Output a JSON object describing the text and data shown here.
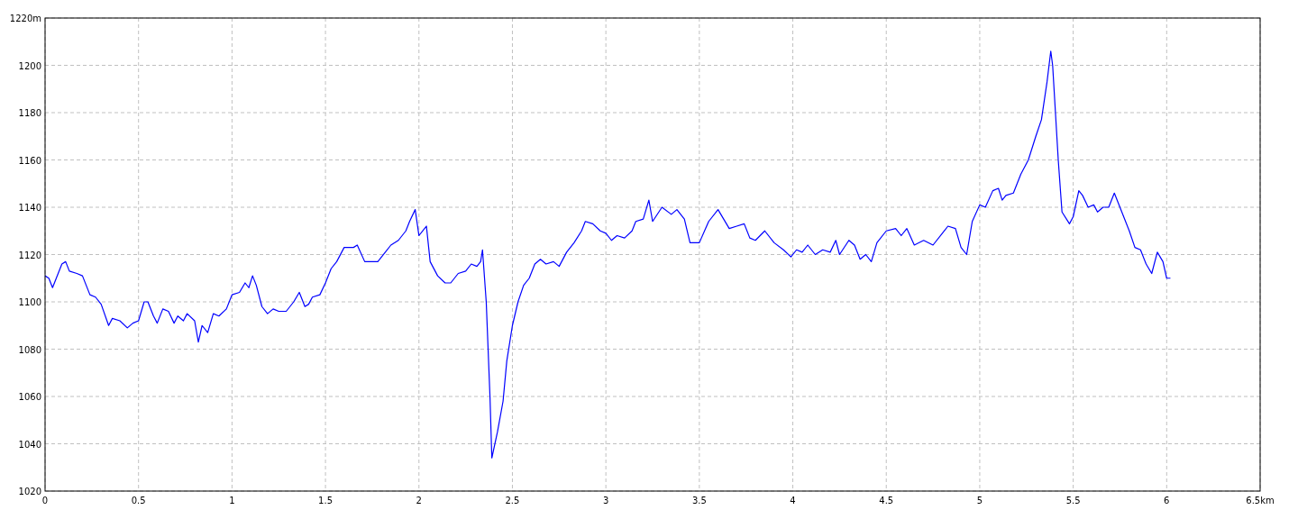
{
  "chart_data": {
    "type": "line",
    "x": [
      0,
      0.02,
      0.04,
      0.06,
      0.09,
      0.11,
      0.13,
      0.17,
      0.2,
      0.22,
      0.24,
      0.27,
      0.3,
      0.34,
      0.36,
      0.4,
      0.44,
      0.47,
      0.5,
      0.53,
      0.55,
      0.58,
      0.6,
      0.63,
      0.66,
      0.69,
      0.71,
      0.74,
      0.76,
      0.8,
      0.82,
      0.84,
      0.87,
      0.9,
      0.93,
      0.97,
      1.0,
      1.04,
      1.07,
      1.09,
      1.11,
      1.13,
      1.16,
      1.19,
      1.22,
      1.25,
      1.29,
      1.33,
      1.36,
      1.39,
      1.41,
      1.43,
      1.47,
      1.5,
      1.53,
      1.56,
      1.6,
      1.65,
      1.67,
      1.71,
      1.75,
      1.78,
      1.82,
      1.85,
      1.89,
      1.93,
      1.95,
      1.98,
      2.0,
      2.04,
      2.06,
      2.1,
      2.14,
      2.17,
      2.21,
      2.25,
      2.28,
      2.31,
      2.33,
      2.34,
      2.36,
      2.38,
      2.39,
      2.42,
      2.45,
      2.47,
      2.5,
      2.53,
      2.56,
      2.59,
      2.62,
      2.65,
      2.68,
      2.72,
      2.75,
      2.79,
      2.83,
      2.87,
      2.89,
      2.93,
      2.97,
      3.0,
      3.03,
      3.06,
      3.1,
      3.14,
      3.16,
      3.2,
      3.23,
      3.25,
      3.3,
      3.35,
      3.38,
      3.42,
      3.45,
      3.5,
      3.55,
      3.6,
      3.63,
      3.66,
      3.7,
      3.74,
      3.77,
      3.8,
      3.85,
      3.9,
      3.95,
      3.99,
      4.02,
      4.05,
      4.08,
      4.12,
      4.16,
      4.2,
      4.23,
      4.25,
      4.3,
      4.33,
      4.36,
      4.39,
      4.42,
      4.45,
      4.5,
      4.55,
      4.58,
      4.61,
      4.65,
      4.7,
      4.75,
      4.8,
      4.83,
      4.87,
      4.9,
      4.93,
      4.96,
      5.0,
      5.03,
      5.07,
      5.1,
      5.12,
      5.14,
      5.18,
      5.22,
      5.26,
      5.3,
      5.33,
      5.36,
      5.38,
      5.39,
      5.42,
      5.44,
      5.48,
      5.5,
      5.53,
      5.55,
      5.58,
      5.61,
      5.63,
      5.66,
      5.69,
      5.72,
      5.75,
      5.8,
      5.83,
      5.86,
      5.89,
      5.92,
      5.95,
      5.98,
      6.0,
      6.02
    ],
    "series": [
      {
        "color": "#0000ff",
        "values": [
          1111,
          1110,
          1106,
          1110,
          1116,
          1117,
          1113,
          1112,
          1111,
          1107,
          1103,
          1102,
          1099,
          1090,
          1093,
          1092,
          1089,
          1091,
          1092,
          1100,
          1100,
          1094,
          1091,
          1097,
          1096,
          1091,
          1094,
          1092,
          1095,
          1092,
          1083,
          1090,
          1087,
          1095,
          1094,
          1097,
          1103,
          1104,
          1108,
          1106,
          1111,
          1107,
          1098,
          1095,
          1097,
          1096,
          1096,
          1100,
          1104,
          1098,
          1099,
          1102,
          1103,
          1108,
          1114,
          1117,
          1123,
          1123,
          1124,
          1117,
          1117,
          1117,
          1121,
          1124,
          1126,
          1130,
          1134,
          1139,
          1128,
          1132,
          1117,
          1111,
          1108,
          1108,
          1112,
          1113,
          1116,
          1115,
          1117,
          1122,
          1100,
          1060,
          1034,
          1045,
          1058,
          1075,
          1090,
          1100,
          1107,
          1110,
          1116,
          1118,
          1116,
          1117,
          1115,
          1121,
          1125,
          1130,
          1134,
          1133,
          1130,
          1129,
          1126,
          1128,
          1127,
          1130,
          1134,
          1135,
          1143,
          1134,
          1140,
          1137,
          1139,
          1135,
          1125,
          1125,
          1134,
          1139,
          1135,
          1131,
          1132,
          1133,
          1127,
          1126,
          1130,
          1125,
          1122,
          1119,
          1122,
          1121,
          1124,
          1120,
          1122,
          1121,
          1126,
          1120,
          1126,
          1124,
          1118,
          1120,
          1117,
          1125,
          1130,
          1131,
          1128,
          1131,
          1124,
          1126,
          1124,
          1129,
          1132,
          1131,
          1123,
          1120,
          1134,
          1141,
          1140,
          1147,
          1148,
          1143,
          1145,
          1146,
          1154,
          1160,
          1170,
          1177,
          1193,
          1206,
          1200,
          1160,
          1138,
          1133,
          1136,
          1147,
          1145,
          1140,
          1141,
          1138,
          1140,
          1140,
          1146,
          1140,
          1130,
          1123,
          1122,
          1116,
          1112,
          1121,
          1117,
          1110,
          1110
        ]
      }
    ],
    "xlim": [
      0,
      6.5
    ],
    "xticks": [
      0,
      0.5,
      1,
      1.5,
      2,
      2.5,
      3,
      3.5,
      4,
      4.5,
      5,
      5.5,
      6,
      {
        "value": 6.5,
        "label": "6.5km"
      }
    ],
    "ylim": [
      1020,
      1220
    ],
    "yticks": [
      1020,
      1040,
      1060,
      1080,
      1100,
      1120,
      1140,
      1160,
      1180,
      1200,
      {
        "value": 1220,
        "label": "1220m"
      }
    ],
    "grid": true,
    "line_style": "solid",
    "marker": "none"
  }
}
